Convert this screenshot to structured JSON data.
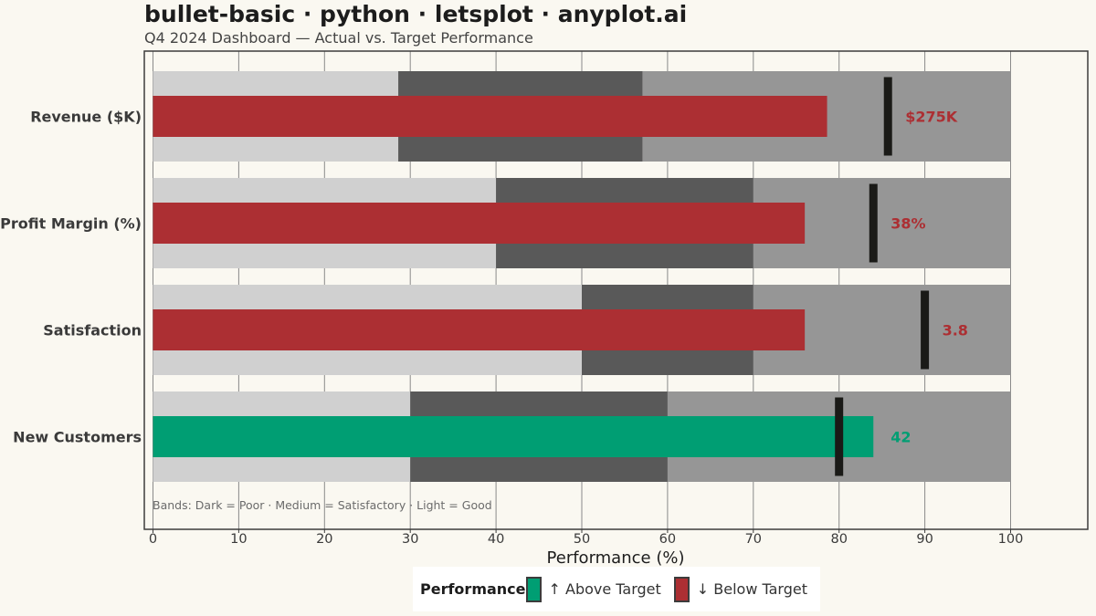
{
  "title": "bullet-basic · python · letsplot · anyplot.ai",
  "subtitle": "Q4 2024 Dashboard — Actual vs. Target Performance",
  "chart_data": {
    "type": "bar",
    "subtype": "bullet",
    "xlabel": "Performance (%)",
    "xlim": [
      0,
      100
    ],
    "xticks": [
      0,
      10,
      20,
      30,
      40,
      50,
      60,
      70,
      80,
      90,
      100
    ],
    "grid": true,
    "categories": [
      "Revenue ($K)",
      "Profit Margin (%)",
      "Satisfaction",
      "New Customers"
    ],
    "bands": [
      {
        "poor": 28.6,
        "satisfactory": 57.1,
        "good": 100
      },
      {
        "poor": 40,
        "satisfactory": 70,
        "good": 100
      },
      {
        "poor": 50,
        "satisfactory": 70,
        "good": 100
      },
      {
        "poor": 30,
        "satisfactory": 60,
        "good": 100
      }
    ],
    "actual": [
      78.6,
      76,
      76,
      84
    ],
    "target": [
      85.7,
      84,
      90,
      80
    ],
    "value_labels": [
      "$275K",
      "38%",
      "3.8",
      "42"
    ],
    "status": [
      "below",
      "below",
      "below",
      "above"
    ],
    "band_note": "Bands:   Dark = Poor   ·   Medium = Satisfactory   ·   Light = Good",
    "legend": {
      "title": "Performance",
      "position": "bottom",
      "items": [
        {
          "key": "above",
          "label": "↑ Above Target"
        },
        {
          "key": "below",
          "label": "↓ Below Target"
        }
      ]
    },
    "colors": {
      "above": "#009e73",
      "below": "#ac2f33",
      "band_light": "#d0d0d0",
      "band_dark": "#595959",
      "band_medium": "#969696",
      "target": "#1a1a17",
      "grid": "#8a8a8a",
      "axis_text": "#3a3a3a"
    }
  }
}
